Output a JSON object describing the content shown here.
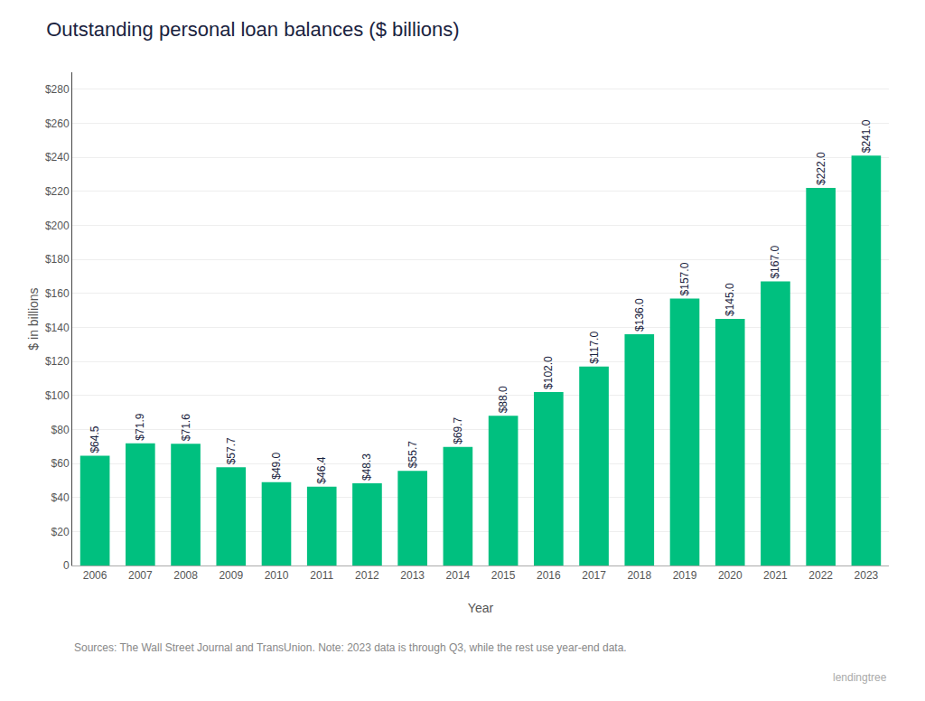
{
  "chart_data": {
    "type": "bar",
    "title": "Outstanding personal loan balances ($ billions)",
    "x_label": "Year",
    "y_label": "$ in billions",
    "annotations": [
      "Sources: The Wall Street Journal and TransUnion. Note: 2023 data is through Q3, while the rest use year-end data.",
      "lendingtree"
    ],
    "categories": [
      "2006",
      "2007",
      "2008",
      "2009",
      "2010",
      "2011",
      "2012",
      "2013",
      "2014",
      "2015",
      "2016",
      "2017",
      "2018",
      "2019",
      "2020",
      "2021",
      "2022",
      "2023"
    ],
    "values": [
      64.5,
      71.9,
      71.6,
      57.7,
      49.0,
      46.4,
      48.3,
      55.7,
      69.7,
      88.0,
      102.0,
      117.0,
      136.0,
      157.0,
      145.0,
      167.0,
      222.0,
      241.0
    ],
    "value_labels": [
      "$64.5",
      "$71.9",
      "$71.6",
      "$57.7",
      "$49.0",
      "$46.4",
      "$48.3",
      "$55.7",
      "$69.7",
      "$88.0",
      "$102.0",
      "$117.0",
      "$136.0",
      "$157.0",
      "$145.0",
      "$167.0",
      "$222.0",
      "$241.0"
    ],
    "color": "#00C07F",
    "ylim": [
      0,
      290
    ],
    "yticks": [
      0,
      {
        "value": 20,
        "label": "$20"
      },
      {
        "value": 40,
        "label": "$40"
      },
      {
        "value": 60,
        "label": "$60"
      },
      {
        "value": 80,
        "label": "$80"
      },
      {
        "value": 100,
        "label": "$100"
      },
      {
        "value": 120,
        "label": "$120"
      },
      {
        "value": 140,
        "label": "$140"
      },
      {
        "value": 160,
        "label": "$160"
      },
      {
        "value": 180,
        "label": "$180"
      },
      {
        "value": 200,
        "label": "$200"
      },
      {
        "value": 220,
        "label": "$220"
      },
      {
        "value": 240,
        "label": "$240"
      },
      {
        "value": 260,
        "label": "$260"
      },
      {
        "value": 280,
        "label": "$280"
      }
    ],
    "grid": true,
    "data_labels": true
  }
}
